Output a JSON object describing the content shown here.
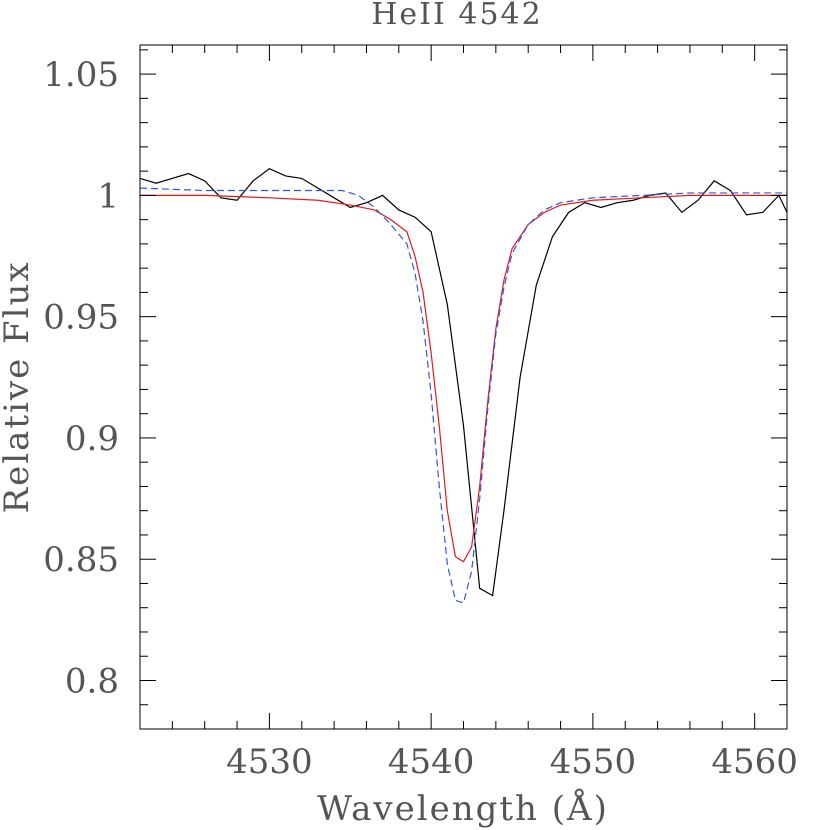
{
  "chart_data": {
    "type": "line",
    "title": "HeII 4542",
    "xlabel": "Wavelength (Å)",
    "ylabel": "Relative Flux",
    "xlim": [
      4522,
      4562
    ],
    "ylim": [
      0.78,
      1.062
    ],
    "xticks": [
      {
        "value": 4530,
        "label": "4530"
      },
      {
        "value": 4540,
        "label": "4540"
      },
      {
        "value": 4550,
        "label": "4550"
      },
      {
        "value": 4560,
        "label": "4560"
      }
    ],
    "yticks": [
      {
        "value": 0.8,
        "label": "0.8"
      },
      {
        "value": 0.85,
        "label": "0.85"
      },
      {
        "value": 0.9,
        "label": "0.9"
      },
      {
        "value": 0.95,
        "label": "0.95"
      },
      {
        "value": 1.0,
        "label": "1"
      },
      {
        "value": 1.05,
        "label": "1.05"
      }
    ],
    "x_minor_step": 2,
    "y_minor_step": 0.01,
    "grid": false,
    "series": [
      {
        "style": "observed",
        "color": "#000000",
        "dash": "solid",
        "points": [
          [
            4522.0,
            1.007
          ],
          [
            4523.0,
            1.005
          ],
          [
            4525.0,
            1.009
          ],
          [
            4526.0,
            1.006
          ],
          [
            4527.0,
            0.999
          ],
          [
            4528.0,
            0.998
          ],
          [
            4529.0,
            1.006
          ],
          [
            4530.0,
            1.011
          ],
          [
            4531.0,
            1.008
          ],
          [
            4532.0,
            1.007
          ],
          [
            4533.0,
            1.003
          ],
          [
            4534.0,
            0.999
          ],
          [
            4535.0,
            0.995
          ],
          [
            4536.0,
            0.997
          ],
          [
            4537.0,
            1.0
          ],
          [
            4538.0,
            0.994
          ],
          [
            4539.0,
            0.991
          ],
          [
            4539.5,
            0.988
          ],
          [
            4540.0,
            0.985
          ],
          [
            4541.0,
            0.955
          ],
          [
            4542.0,
            0.905
          ],
          [
            4543.0,
            0.838
          ],
          [
            4543.8,
            0.835
          ],
          [
            4544.5,
            0.87
          ],
          [
            4545.5,
            0.925
          ],
          [
            4546.5,
            0.963
          ],
          [
            4547.5,
            0.983
          ],
          [
            4548.5,
            0.993
          ],
          [
            4549.5,
            0.997
          ],
          [
            4550.5,
            0.995
          ],
          [
            4551.5,
            0.997
          ],
          [
            4552.5,
            0.998
          ],
          [
            4553.5,
            1.0
          ],
          [
            4554.5,
            1.001
          ],
          [
            4555.5,
            0.993
          ],
          [
            4556.5,
            0.998
          ],
          [
            4557.5,
            1.006
          ],
          [
            4558.5,
            1.002
          ],
          [
            4559.5,
            0.992
          ],
          [
            4560.5,
            0.993
          ],
          [
            4561.5,
            1.0
          ],
          [
            4562.0,
            0.993
          ]
        ]
      },
      {
        "style": "model",
        "color": "#e31a1c",
        "dash": "solid",
        "points": [
          [
            4522.0,
            1.0
          ],
          [
            4526.0,
            1.0
          ],
          [
            4530.0,
            0.999
          ],
          [
            4533.0,
            0.998
          ],
          [
            4535.0,
            0.996
          ],
          [
            4536.5,
            0.994
          ],
          [
            4537.5,
            0.99
          ],
          [
            4538.5,
            0.985
          ],
          [
            4539.0,
            0.975
          ],
          [
            4539.5,
            0.96
          ],
          [
            4540.0,
            0.935
          ],
          [
            4540.5,
            0.905
          ],
          [
            4541.0,
            0.87
          ],
          [
            4541.5,
            0.851
          ],
          [
            4542.0,
            0.849
          ],
          [
            4542.5,
            0.855
          ],
          [
            4543.0,
            0.88
          ],
          [
            4543.5,
            0.915
          ],
          [
            4544.0,
            0.945
          ],
          [
            4544.5,
            0.965
          ],
          [
            4545.0,
            0.978
          ],
          [
            4546.0,
            0.988
          ],
          [
            4547.0,
            0.993
          ],
          [
            4548.0,
            0.996
          ],
          [
            4550.0,
            0.998
          ],
          [
            4553.0,
            0.999
          ],
          [
            4556.0,
            1.0
          ],
          [
            4562.0,
            1.0
          ]
        ]
      },
      {
        "style": "model",
        "color": "#3355dd",
        "dash": "dashed",
        "points": [
          [
            4522.0,
            1.003
          ],
          [
            4526.0,
            1.002
          ],
          [
            4530.0,
            1.002
          ],
          [
            4533.0,
            1.002
          ],
          [
            4534.5,
            1.002
          ],
          [
            4535.5,
            1.0
          ],
          [
            4536.5,
            0.995
          ],
          [
            4537.5,
            0.988
          ],
          [
            4538.5,
            0.98
          ],
          [
            4539.0,
            0.968
          ],
          [
            4539.5,
            0.948
          ],
          [
            4540.0,
            0.918
          ],
          [
            4540.5,
            0.88
          ],
          [
            4541.0,
            0.848
          ],
          [
            4541.5,
            0.833
          ],
          [
            4542.0,
            0.832
          ],
          [
            4542.5,
            0.845
          ],
          [
            4543.0,
            0.875
          ],
          [
            4543.5,
            0.912
          ],
          [
            4544.0,
            0.943
          ],
          [
            4544.5,
            0.962
          ],
          [
            4545.0,
            0.976
          ],
          [
            4546.0,
            0.988
          ],
          [
            4547.0,
            0.994
          ],
          [
            4548.0,
            0.997
          ],
          [
            4550.0,
            0.999
          ],
          [
            4553.0,
            1.0
          ],
          [
            4556.0,
            1.001
          ],
          [
            4562.0,
            1.001
          ]
        ]
      }
    ]
  }
}
